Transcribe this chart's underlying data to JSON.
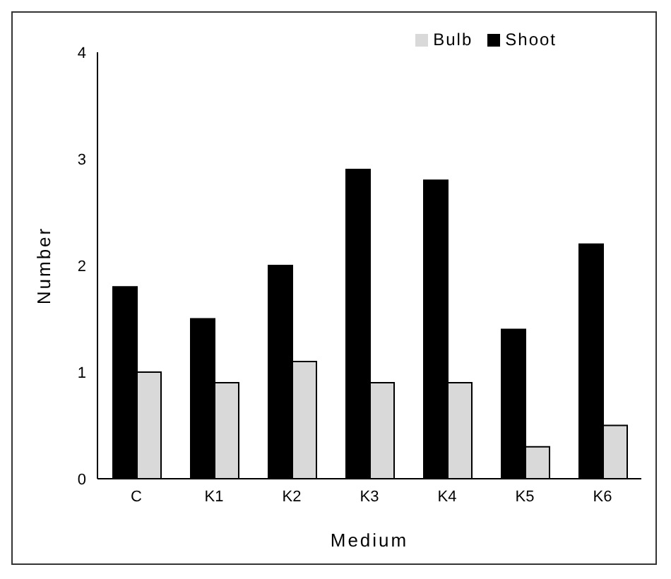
{
  "chart_data": {
    "type": "bar",
    "xlabel": "Medium",
    "ylabel": "Number",
    "categories": [
      "C",
      "K1",
      "K2",
      "K3",
      "K4",
      "K5",
      "K6"
    ],
    "series": [
      {
        "name": "Shoot",
        "color": "#000000",
        "values": [
          1.8,
          1.5,
          2.0,
          2.9,
          2.8,
          1.4,
          2.2
        ]
      },
      {
        "name": "Bulb",
        "color": "#d9d9d9",
        "values": [
          1.0,
          0.9,
          1.1,
          0.9,
          0.9,
          0.3,
          0.5
        ]
      }
    ],
    "ylim": [
      0,
      4
    ],
    "yticks": [
      0,
      1,
      2,
      3,
      4
    ],
    "grid": false,
    "legend": "top right"
  }
}
